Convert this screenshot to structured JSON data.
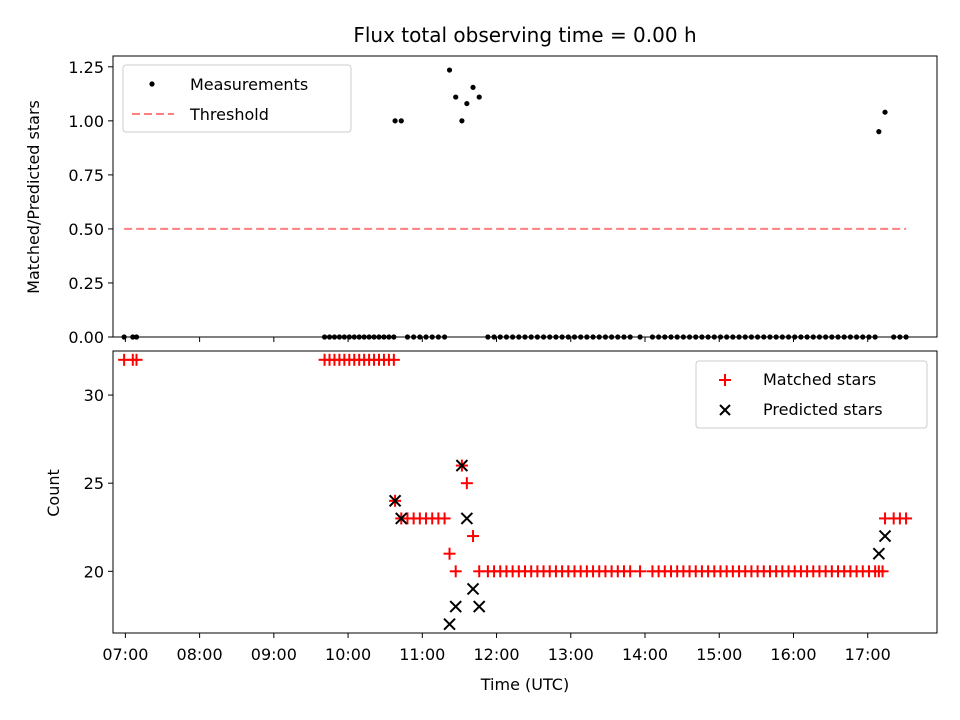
{
  "chart_data": [
    {
      "type": "scatter",
      "title": "Flux total observing time = 0.00 h",
      "ylabel": "Matched/Predicted stars",
      "xlabel": "",
      "xlim": [
        "06:50",
        "17:56"
      ],
      "ylim": [
        0,
        1.3
      ],
      "yticks": [
        0,
        0.25,
        0.5,
        0.75,
        1.0,
        1.25
      ],
      "ytick_labels": [
        "0.00",
        "0.25",
        "0.50",
        "0.75",
        "1.00",
        "1.25"
      ],
      "legend_position": "upper-left",
      "series": [
        {
          "name": "Measurements",
          "marker": "dot",
          "color": "#000000",
          "points": [
            [
              "06:59",
              0
            ],
            [
              "07:06",
              0
            ],
            [
              "07:09",
              0
            ],
            [
              "09:41",
              0
            ],
            [
              "09:45",
              0
            ],
            [
              "09:49",
              0
            ],
            [
              "09:53",
              0
            ],
            [
              "09:57",
              0
            ],
            [
              "10:01",
              0
            ],
            [
              "10:05",
              0
            ],
            [
              "10:09",
              0
            ],
            [
              "10:13",
              0
            ],
            [
              "10:17",
              0
            ],
            [
              "10:21",
              0
            ],
            [
              "10:25",
              0
            ],
            [
              "10:29",
              0
            ],
            [
              "10:33",
              0
            ],
            [
              "10:37",
              0
            ],
            [
              "10:38",
              1.0
            ],
            [
              "10:43",
              1.0
            ],
            [
              "10:48",
              0
            ],
            [
              "10:53",
              0
            ],
            [
              "10:58",
              0
            ],
            [
              "11:03",
              0
            ],
            [
              "11:08",
              0
            ],
            [
              "11:13",
              0
            ],
            [
              "11:18",
              0
            ],
            [
              "11:22",
              1.235
            ],
            [
              "11:27",
              1.11
            ],
            [
              "11:32",
              1.0
            ],
            [
              "11:36",
              1.08
            ],
            [
              "11:41",
              1.155
            ],
            [
              "11:46",
              1.11
            ],
            [
              "11:53",
              0
            ],
            [
              "11:58",
              0
            ],
            [
              "12:03",
              0
            ],
            [
              "12:08",
              0
            ],
            [
              "12:13",
              0
            ],
            [
              "12:18",
              0
            ],
            [
              "12:23",
              0
            ],
            [
              "12:28",
              0
            ],
            [
              "12:33",
              0
            ],
            [
              "12:38",
              0
            ],
            [
              "12:43",
              0
            ],
            [
              "12:48",
              0
            ],
            [
              "12:53",
              0
            ],
            [
              "12:58",
              0
            ],
            [
              "13:03",
              0
            ],
            [
              "13:08",
              0
            ],
            [
              "13:13",
              0
            ],
            [
              "13:18",
              0
            ],
            [
              "13:23",
              0
            ],
            [
              "13:28",
              0
            ],
            [
              "13:33",
              0
            ],
            [
              "13:38",
              0
            ],
            [
              "13:43",
              0
            ],
            [
              "13:48",
              0
            ],
            [
              "13:56",
              0
            ],
            [
              "14:06",
              0
            ],
            [
              "14:11",
              0
            ],
            [
              "14:16",
              0
            ],
            [
              "14:21",
              0
            ],
            [
              "14:26",
              0
            ],
            [
              "14:31",
              0
            ],
            [
              "14:36",
              0
            ],
            [
              "14:41",
              0
            ],
            [
              "14:46",
              0
            ],
            [
              "14:51",
              0
            ],
            [
              "14:56",
              0
            ],
            [
              "15:01",
              0
            ],
            [
              "15:06",
              0
            ],
            [
              "15:11",
              0
            ],
            [
              "15:16",
              0
            ],
            [
              "15:21",
              0
            ],
            [
              "15:26",
              0
            ],
            [
              "15:31",
              0
            ],
            [
              "15:36",
              0
            ],
            [
              "15:41",
              0
            ],
            [
              "15:46",
              0
            ],
            [
              "15:51",
              0
            ],
            [
              "15:56",
              0
            ],
            [
              "16:01",
              0
            ],
            [
              "16:06",
              0
            ],
            [
              "16:11",
              0
            ],
            [
              "16:16",
              0
            ],
            [
              "16:21",
              0
            ],
            [
              "16:26",
              0
            ],
            [
              "16:31",
              0
            ],
            [
              "16:36",
              0
            ],
            [
              "16:41",
              0
            ],
            [
              "16:46",
              0
            ],
            [
              "16:51",
              0
            ],
            [
              "16:56",
              0
            ],
            [
              "17:01",
              0
            ],
            [
              "17:06",
              0
            ],
            [
              "17:09",
              0.95
            ],
            [
              "17:14",
              1.04
            ],
            [
              "17:21",
              0
            ],
            [
              "17:26",
              0
            ],
            [
              "17:31",
              0
            ]
          ]
        },
        {
          "name": "Threshold",
          "type": "line",
          "style": "dashed",
          "color": "#ff7f7f",
          "points": [
            [
              "06:59",
              0.5
            ],
            [
              "17:31",
              0.5
            ]
          ]
        }
      ]
    },
    {
      "type": "scatter",
      "title": "",
      "ylabel": "Count",
      "xlabel": "Time (UTC)",
      "xlim": [
        "06:50",
        "17:56"
      ],
      "ylim": [
        16.5,
        32.5
      ],
      "yticks": [
        20,
        25,
        30
      ],
      "xticks": [
        "07:00",
        "08:00",
        "09:00",
        "10:00",
        "11:00",
        "12:00",
        "13:00",
        "14:00",
        "15:00",
        "16:00",
        "17:00"
      ],
      "legend_position": "upper-right",
      "series": [
        {
          "name": "Matched stars",
          "marker": "plus",
          "color": "#ff0000",
          "points": [
            [
              "06:59",
              32
            ],
            [
              "07:06",
              32
            ],
            [
              "07:09",
              32
            ],
            [
              "09:41",
              32
            ],
            [
              "09:45",
              32
            ],
            [
              "09:49",
              32
            ],
            [
              "09:53",
              32
            ],
            [
              "09:57",
              32
            ],
            [
              "10:01",
              32
            ],
            [
              "10:05",
              32
            ],
            [
              "10:09",
              32
            ],
            [
              "10:13",
              32
            ],
            [
              "10:17",
              32
            ],
            [
              "10:21",
              32
            ],
            [
              "10:25",
              32
            ],
            [
              "10:29",
              32
            ],
            [
              "10:33",
              32
            ],
            [
              "10:37",
              32
            ],
            [
              "10:38",
              24
            ],
            [
              "10:43",
              23
            ],
            [
              "10:48",
              23
            ],
            [
              "10:53",
              23
            ],
            [
              "10:58",
              23
            ],
            [
              "11:03",
              23
            ],
            [
              "11:08",
              23
            ],
            [
              "11:13",
              23
            ],
            [
              "11:18",
              23
            ],
            [
              "11:22",
              21
            ],
            [
              "11:27",
              20
            ],
            [
              "11:32",
              26
            ],
            [
              "11:36",
              25
            ],
            [
              "11:41",
              22
            ],
            [
              "11:46",
              20
            ],
            [
              "11:53",
              20
            ],
            [
              "11:58",
              20
            ],
            [
              "12:03",
              20
            ],
            [
              "12:08",
              20
            ],
            [
              "12:13",
              20
            ],
            [
              "12:18",
              20
            ],
            [
              "12:23",
              20
            ],
            [
              "12:28",
              20
            ],
            [
              "12:33",
              20
            ],
            [
              "12:38",
              20
            ],
            [
              "12:43",
              20
            ],
            [
              "12:48",
              20
            ],
            [
              "12:53",
              20
            ],
            [
              "12:58",
              20
            ],
            [
              "13:03",
              20
            ],
            [
              "13:08",
              20
            ],
            [
              "13:13",
              20
            ],
            [
              "13:18",
              20
            ],
            [
              "13:23",
              20
            ],
            [
              "13:28",
              20
            ],
            [
              "13:33",
              20
            ],
            [
              "13:38",
              20
            ],
            [
              "13:43",
              20
            ],
            [
              "13:48",
              20
            ],
            [
              "13:56",
              20
            ],
            [
              "14:06",
              20
            ],
            [
              "14:11",
              20
            ],
            [
              "14:16",
              20
            ],
            [
              "14:21",
              20
            ],
            [
              "14:26",
              20
            ],
            [
              "14:31",
              20
            ],
            [
              "14:36",
              20
            ],
            [
              "14:41",
              20
            ],
            [
              "14:46",
              20
            ],
            [
              "14:51",
              20
            ],
            [
              "14:56",
              20
            ],
            [
              "15:01",
              20
            ],
            [
              "15:06",
              20
            ],
            [
              "15:11",
              20
            ],
            [
              "15:16",
              20
            ],
            [
              "15:21",
              20
            ],
            [
              "15:26",
              20
            ],
            [
              "15:31",
              20
            ],
            [
              "15:36",
              20
            ],
            [
              "15:41",
              20
            ],
            [
              "15:46",
              20
            ],
            [
              "15:51",
              20
            ],
            [
              "15:56",
              20
            ],
            [
              "16:01",
              20
            ],
            [
              "16:06",
              20
            ],
            [
              "16:11",
              20
            ],
            [
              "16:16",
              20
            ],
            [
              "16:21",
              20
            ],
            [
              "16:26",
              20
            ],
            [
              "16:31",
              20
            ],
            [
              "16:36",
              20
            ],
            [
              "16:41",
              20
            ],
            [
              "16:46",
              20
            ],
            [
              "16:51",
              20
            ],
            [
              "16:56",
              20
            ],
            [
              "17:01",
              20
            ],
            [
              "17:06",
              20
            ],
            [
              "17:09",
              20
            ],
            [
              "17:12",
              20
            ],
            [
              "17:14",
              23
            ],
            [
              "17:21",
              23
            ],
            [
              "17:26",
              23
            ],
            [
              "17:31",
              23
            ]
          ]
        },
        {
          "name": "Predicted stars",
          "marker": "x",
          "color": "#000000",
          "points": [
            [
              "10:38",
              24
            ],
            [
              "10:43",
              23
            ],
            [
              "11:22",
              17
            ],
            [
              "11:27",
              18
            ],
            [
              "11:32",
              26
            ],
            [
              "11:36",
              23
            ],
            [
              "11:41",
              19
            ],
            [
              "11:46",
              18
            ],
            [
              "17:09",
              21
            ],
            [
              "17:14",
              22
            ]
          ]
        }
      ]
    }
  ]
}
